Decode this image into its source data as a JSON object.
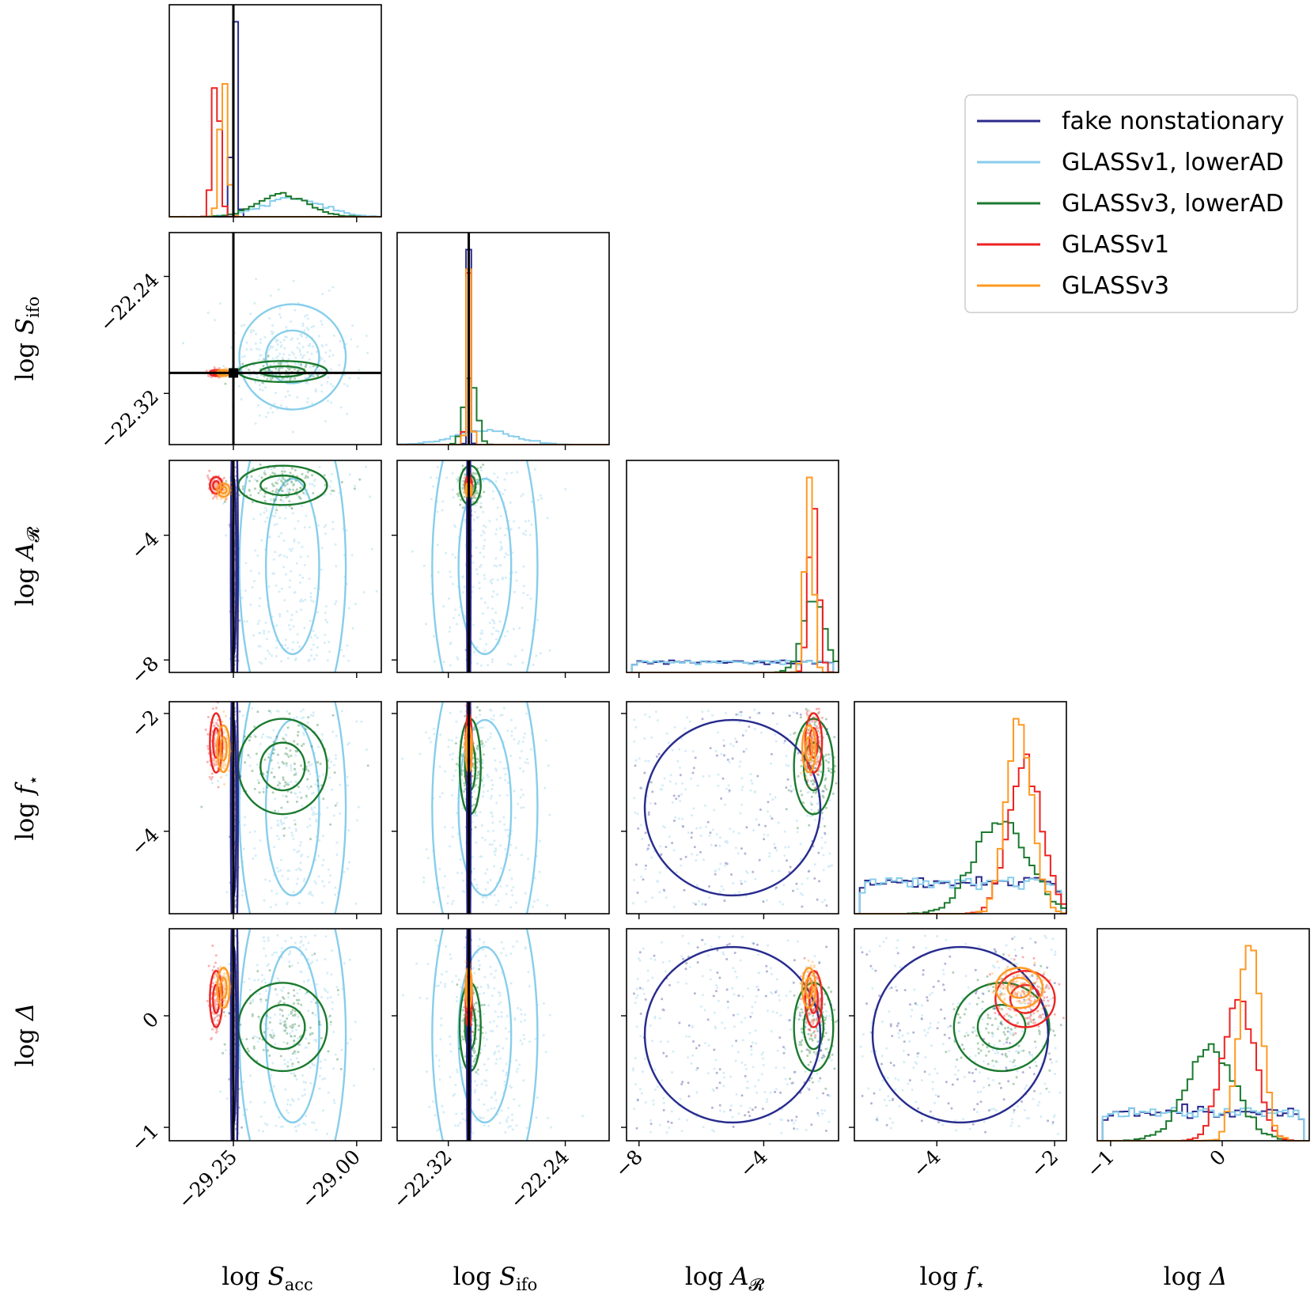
{
  "chart_data": {
    "type": "corner",
    "parameters": [
      {
        "key": "Sacc",
        "label_base": "log ",
        "label_main": "S",
        "label_sub": "acc",
        "range": [
          -29.38,
          -28.95
        ],
        "ticks": [
          -29.25,
          -29.0
        ],
        "tick_labels": [
          "−29.25",
          "−29.00"
        ],
        "truth": -29.25
      },
      {
        "key": "Sifo",
        "label_base": "log ",
        "label_main": "S",
        "label_sub": "ifo",
        "range": [
          -22.355,
          -22.21
        ],
        "ticks": [
          -22.32,
          -22.24
        ],
        "tick_labels": [
          "−22.32",
          "−22.24"
        ],
        "truth": -22.306
      },
      {
        "key": "AR",
        "label_base": "log ",
        "label_main": "A",
        "label_sub": "𝓡",
        "range": [
          -8.4,
          -1.6
        ],
        "ticks": [
          -8,
          -4
        ],
        "tick_labels": [
          "−8",
          "−4"
        ],
        "truth": null
      },
      {
        "key": "fstar",
        "label_base": "log ",
        "label_main": "f",
        "label_sub": "⋆",
        "range": [
          -5.4,
          -1.8
        ],
        "ticks": [
          -4,
          -2
        ],
        "tick_labels": [
          "−4",
          "−2"
        ],
        "truth": null
      },
      {
        "key": "Delta",
        "label_base": "log ",
        "label_main": "Δ",
        "label_sub": "",
        "range": [
          -1.12,
          0.78
        ],
        "ticks": [
          -1,
          0
        ],
        "tick_labels": [
          "−1",
          "0"
        ],
        "truth": null
      }
    ],
    "series": [
      {
        "name": "fake nonstationary",
        "color": "#2a2a8c",
        "mean": [
          -29.248,
          -22.306,
          null,
          null,
          null
        ],
        "sd": [
          0.004,
          0.0007,
          null,
          null,
          null
        ]
      },
      {
        "name": "GLASSv1, lowerAD",
        "color": "#87ceeb",
        "mean": [
          -29.13,
          -22.295,
          null,
          null,
          null
        ],
        "sd": [
          0.06,
          0.02,
          null,
          null,
          null
        ]
      },
      {
        "name": "GLASSv3, lowerAD",
        "color": "#1b7a2f",
        "mean": [
          -29.15,
          -22.305,
          -2.4,
          -2.9,
          -0.1
        ],
        "sd": [
          0.05,
          0.004,
          0.35,
          0.45,
          0.22
        ]
      },
      {
        "name": "GLASSv1",
        "color": "#ee2222",
        "mean": [
          -29.285,
          -22.306,
          -2.4,
          -2.5,
          0.15
        ],
        "sd": [
          0.007,
          0.0012,
          0.15,
          0.28,
          0.14
        ]
      },
      {
        "name": "GLASSv3",
        "color": "#ff9922",
        "mean": [
          -29.27,
          -22.306,
          -2.55,
          -2.6,
          0.25
        ],
        "sd": [
          0.007,
          0.0012,
          0.12,
          0.22,
          0.1
        ]
      }
    ],
    "legend_position": "upper-right"
  }
}
